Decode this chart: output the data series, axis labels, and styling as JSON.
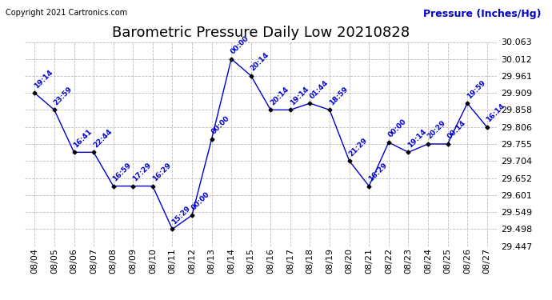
{
  "title": "Barometric Pressure Daily Low 20210828",
  "ylabel": "Pressure (Inches/Hg)",
  "copyright": "Copyright 2021 Cartronics.com",
  "dates": [
    "08/04",
    "08/05",
    "08/06",
    "08/07",
    "08/08",
    "08/09",
    "08/10",
    "08/11",
    "08/12",
    "08/13",
    "08/14",
    "08/15",
    "08/16",
    "08/17",
    "08/18",
    "08/19",
    "08/20",
    "08/21",
    "08/22",
    "08/23",
    "08/24",
    "08/25",
    "08/26",
    "08/27"
  ],
  "values": [
    29.909,
    29.858,
    29.73,
    29.73,
    29.628,
    29.628,
    29.628,
    29.498,
    29.54,
    29.77,
    30.012,
    29.961,
    29.858,
    29.858,
    29.878,
    29.858,
    29.704,
    29.628,
    29.76,
    29.73,
    29.755,
    29.755,
    29.878,
    29.806
  ],
  "times": [
    "19:14",
    "23:59",
    "16:41",
    "22:44",
    "16:59",
    "17:29",
    "16:29",
    "15:29",
    "00:00",
    "00:00",
    "00:00",
    "20:14",
    "20:14",
    "19:14",
    "01:44",
    "18:59",
    "21:29",
    "16:29",
    "00:00",
    "19:14",
    "20:29",
    "00:14",
    "19:59",
    "16:14"
  ],
  "ylim_min": 29.447,
  "ylim_max": 30.063,
  "yticks": [
    29.447,
    29.498,
    29.549,
    29.601,
    29.652,
    29.704,
    29.755,
    29.806,
    29.858,
    29.909,
    29.961,
    30.012,
    30.063
  ],
  "line_color": "#0000cc",
  "marker_color": "#000000",
  "title_fontsize": 13,
  "ylabel_fontsize": 9,
  "tick_fontsize": 8,
  "annot_fontsize": 6.5,
  "bg_color": "#ffffff",
  "grid_color": "#bbbbbb"
}
